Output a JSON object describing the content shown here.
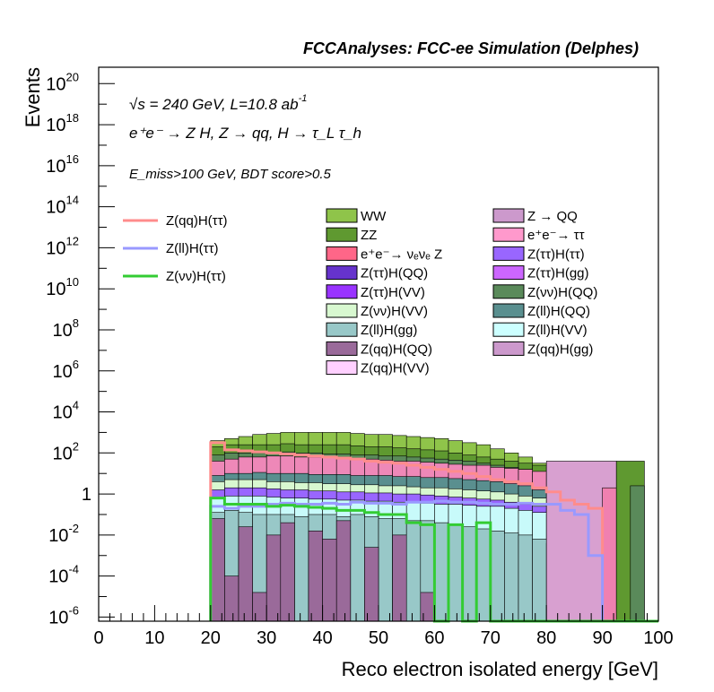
{
  "chart_data": {
    "type": "histogram",
    "title": "FCCAnalyses: FCC-ee Simulation (Delphes)",
    "annotations": {
      "energy": "√s = 240 GeV, L=10.8 ab",
      "energy_exp": "-1",
      "process": "e⁺e⁻ → Z H, Z → qq, H → τ_L τ_h",
      "selection": "E_miss>100 GeV, BDT score>0.5"
    },
    "xlabel": "Reco electron isolated energy [GeV]",
    "ylabel": "Events",
    "xlim": [
      0,
      100
    ],
    "ylim_log10": [
      -6.2,
      20.8
    ],
    "y_scale": "log",
    "x_ticks": [
      "0",
      "10",
      "20",
      "30",
      "40",
      "50",
      "60",
      "70",
      "80",
      "90",
      "100"
    ],
    "y_ticks": [
      {
        "base": "10",
        "exp": "20"
      },
      {
        "base": "10",
        "exp": "18"
      },
      {
        "base": "10",
        "exp": "16"
      },
      {
        "base": "10",
        "exp": "14"
      },
      {
        "base": "10",
        "exp": "12"
      },
      {
        "base": "10",
        "exp": "10"
      },
      {
        "base": "10",
        "exp": "8"
      },
      {
        "base": "10",
        "exp": "6"
      },
      {
        "base": "10",
        "exp": "4"
      },
      {
        "base": "10",
        "exp": "2"
      },
      {
        "base": "1",
        "exp": ""
      },
      {
        "base": "10",
        "exp": "-2"
      },
      {
        "base": "10",
        "exp": "-4"
      },
      {
        "base": "10",
        "exp": "-6"
      }
    ],
    "y_tick_log10": [
      20,
      18,
      16,
      14,
      12,
      10,
      8,
      6,
      4,
      2,
      0,
      -2,
      -4,
      -6
    ],
    "bin_edges_start": 20,
    "bin_width": 2.5,
    "stack_layers": [
      {
        "name": "WW",
        "color": "#8fc44a",
        "log10_values": [
          2.6,
          2.7,
          2.8,
          2.9,
          2.95,
          3.0,
          3.0,
          3.0,
          3.0,
          3.0,
          2.95,
          2.9,
          2.9,
          2.85,
          2.8,
          2.75,
          2.7,
          2.6,
          2.5,
          2.4,
          2.2,
          2.0,
          1.8,
          1.5,
          1.2,
          0.6,
          0.4,
          0.2,
          0.0,
          -0.2
        ]
      },
      {
        "name": "ZZ",
        "color": "#5f9930",
        "log10_values": [
          2.3,
          2.4,
          2.4,
          2.4,
          2.4,
          2.45,
          2.4,
          2.4,
          2.4,
          2.4,
          2.35,
          2.3,
          2.3,
          2.25,
          2.2,
          2.15,
          2.1,
          2.0,
          1.9,
          1.8,
          1.7,
          1.6,
          1.5,
          1.4,
          1.3,
          0.4,
          0.2,
          0.0,
          -0.2,
          -0.3
        ]
      },
      {
        "name": "Z(νν)H(QQ)",
        "color": "#5a8a5a",
        "log10_values": [
          1.9,
          2.0,
          2.0,
          2.0,
          2.0,
          2.05,
          2.0,
          2.0,
          1.95,
          1.95,
          1.9,
          1.9,
          1.85,
          1.85,
          1.8,
          1.75,
          1.7,
          1.65,
          1.6,
          1.5,
          1.4,
          1.3,
          1.2,
          1.0,
          0.8,
          0.3,
          0.1,
          -0.1,
          -0.3,
          -6.2
        ]
      },
      {
        "name": "e⁺e⁻→ ττ",
        "color": "#ee88b8",
        "log10_values": [
          1.6,
          1.7,
          1.8,
          1.8,
          1.85,
          1.85,
          1.8,
          1.8,
          1.8,
          1.75,
          1.7,
          1.7,
          1.65,
          1.6,
          1.6,
          1.55,
          1.5,
          1.45,
          1.4,
          1.4,
          1.3,
          1.25,
          1.2,
          1.1,
          1.0,
          0.2,
          0.1,
          0.0,
          -0.2,
          -6.2
        ]
      },
      {
        "name": "Z(ll)H(QQ)",
        "color": "#5a8f8f",
        "log10_values": [
          0.9,
          1.0,
          1.0,
          1.05,
          1.0,
          1.0,
          1.0,
          0.95,
          0.95,
          0.95,
          0.9,
          0.9,
          0.9,
          0.85,
          0.85,
          0.8,
          0.8,
          0.75,
          0.7,
          0.65,
          0.6,
          0.5,
          0.4,
          0.2,
          0.1,
          -0.2,
          -0.4,
          -0.6,
          -0.8,
          -6.2
        ]
      },
      {
        "name": "Z(νν)H(VV)",
        "color": "#d8f8d0",
        "log10_values": [
          0.6,
          0.7,
          0.7,
          0.7,
          0.6,
          0.6,
          0.55,
          0.55,
          0.5,
          0.5,
          0.45,
          0.45,
          0.4,
          0.4,
          0.35,
          0.3,
          0.3,
          0.25,
          0.2,
          0.15,
          0.1,
          0.0,
          -0.1,
          -0.2,
          -0.3,
          -0.8,
          -1.0,
          -1.2,
          -1.4,
          -6.2
        ]
      },
      {
        "name": "Z(ττ)H(ττ)",
        "color": "#9966ff",
        "log10_values": [
          0.2,
          0.3,
          0.3,
          0.3,
          0.25,
          0.2,
          0.2,
          0.15,
          0.15,
          0.1,
          0.1,
          0.05,
          0.05,
          0.0,
          0.0,
          -0.05,
          -0.1,
          -0.15,
          -0.2,
          -0.25,
          -0.3,
          -0.4,
          -0.5,
          -0.6,
          -0.7,
          -6.2,
          -6.2,
          -6.2,
          -6.2,
          -6.2
        ]
      },
      {
        "name": "Z(ll)H(VV)",
        "color": "#c8fafa",
        "log10_values": [
          -0.2,
          -0.1,
          -0.1,
          -0.1,
          -0.15,
          -0.2,
          -0.2,
          -0.25,
          -0.25,
          -0.3,
          -0.3,
          -0.35,
          -0.35,
          -0.4,
          -0.4,
          -0.45,
          -0.5,
          -0.5,
          -0.55,
          -0.6,
          -0.6,
          -0.7,
          -0.8,
          -0.9,
          -1.0,
          -6.2,
          -6.2,
          -6.2,
          -6.2,
          -6.2
        ]
      },
      {
        "name": "Z(ll)H(gg)",
        "color": "#98c8c8",
        "log10_values": [
          -0.9,
          -0.8,
          -0.9,
          -1.0,
          -1.0,
          -1.0,
          -1.1,
          -1.0,
          -1.0,
          -1.1,
          -1.0,
          -1.1,
          -1.2,
          -1.2,
          -1.3,
          -1.3,
          -1.4,
          -1.5,
          -1.6,
          -1.7,
          -1.8,
          -1.9,
          -2.0,
          -2.2,
          -2.4,
          -6.2,
          -6.2,
          -6.2,
          -6.2,
          -6.2
        ]
      },
      {
        "name": "Z(qq)H(QQ)",
        "color": "#9a6a9a",
        "log10_values": [
          -1.2,
          -4.0,
          -1.6,
          -4.8,
          -2.0,
          -1.4,
          -6.2,
          -1.8,
          -2.2,
          -1.3,
          -6.2,
          -2.6,
          -6.2,
          -2.0,
          -6.2,
          -4.8,
          -6.2,
          -6.2,
          -6.2,
          -6.2,
          -6.2,
          -6.2,
          -6.2,
          -6.2,
          -6.2,
          -6.2,
          -6.2,
          -6.2,
          -6.2,
          -6.2
        ]
      }
    ],
    "tail_layers": [
      {
        "name": "Z(qq)H(gg)",
        "color": "#d8a0d0",
        "x_start": 80,
        "x_end": 92.5,
        "log10_value": 1.6
      },
      {
        "name": "Z(qq)H(gg)",
        "color": "#d8a0d0",
        "x_start": 85,
        "x_end": 90,
        "log10_value": -6.2
      },
      {
        "name": "e⁺e⁻→ ττ",
        "color": "#f080b0",
        "x_start": 90,
        "x_end": 92.5,
        "log10_value": 0.3
      },
      {
        "name": "ZZ",
        "color": "#5f9930",
        "x_start": 92.5,
        "x_end": 97.5,
        "log10_value": 1.6
      },
      {
        "name": "Z(νν)H(QQ)",
        "color": "#5a8a5a",
        "x_start": 95,
        "x_end": 97.5,
        "log10_value": 0.4
      }
    ],
    "line_series": [
      {
        "name": "Z(qq)H(ττ)",
        "color": "#ff8c8c",
        "log10_values": [
          2.5,
          2.15,
          2.1,
          2.05,
          2.0,
          1.95,
          1.9,
          1.85,
          1.8,
          1.75,
          1.7,
          1.6,
          1.55,
          1.5,
          1.4,
          1.3,
          1.2,
          1.1,
          1.0,
          0.85,
          0.7,
          0.6,
          0.5,
          0.3,
          0.1,
          -0.3,
          -0.5,
          -0.7,
          -6.2,
          -6.2,
          -6.2,
          -6.2
        ]
      },
      {
        "name": "Z(ll)H(ττ)",
        "color": "#9999ff",
        "log10_values": [
          -0.6,
          -0.7,
          -0.6,
          -0.6,
          -0.5,
          -0.45,
          -0.5,
          -0.5,
          -0.45,
          -0.5,
          -0.4,
          -0.45,
          -0.45,
          -0.5,
          -0.4,
          -0.4,
          -0.35,
          -0.4,
          -0.4,
          -0.45,
          -0.5,
          -0.5,
          -0.45,
          -0.5,
          -0.5,
          -0.8,
          -1.0,
          -3.0,
          -6.2,
          -6.2,
          -6.2,
          -6.2
        ]
      },
      {
        "name": "Z(νν)H(ττ)",
        "color": "#33cc33",
        "log10_values": [
          -0.2,
          -0.5,
          -0.5,
          -0.5,
          -0.6,
          -0.55,
          -0.6,
          -0.65,
          -0.7,
          -0.8,
          -0.8,
          -0.9,
          -1.0,
          -1.0,
          -1.4,
          -1.5,
          -6.2,
          -1.5,
          -6.2,
          -1.4,
          -6.2,
          -6.2,
          -6.2,
          -6.2,
          -6.2,
          -6.2,
          -6.2,
          -6.2,
          -6.2,
          -6.2,
          -6.2,
          -6.2
        ]
      }
    ],
    "line_legend": [
      {
        "label": "Z(qq)H(ττ)",
        "color": "#ff8c8c"
      },
      {
        "label": "Z(ll)H(ττ)",
        "color": "#9999ff"
      },
      {
        "label": "Z(νν)H(ττ)",
        "color": "#33cc33"
      }
    ],
    "legend_col1": [
      {
        "label": "WW",
        "color": "#8fc44a"
      },
      {
        "label": "ZZ",
        "color": "#5f9930"
      },
      {
        "label": "e⁺e⁻→ νₑνₑ Z",
        "color": "#ff6688"
      },
      {
        "label": "Z(ττ)H(QQ)",
        "color": "#6633cc"
      },
      {
        "label": "Z(ττ)H(VV)",
        "color": "#9933ff"
      },
      {
        "label": "Z(νν)H(VV)",
        "color": "#d8f8d0"
      },
      {
        "label": "Z(ll)H(gg)",
        "color": "#98c8c8"
      },
      {
        "label": "Z(qq)H(QQ)",
        "color": "#9a6a9a"
      },
      {
        "label": "Z(qq)H(VV)",
        "color": "#ffd0ff"
      }
    ],
    "legend_col2": [
      {
        "label": "Z → QQ",
        "color": "#cc99cc"
      },
      {
        "label": "e⁺e⁻→ ττ",
        "color": "#ff99cc"
      },
      {
        "label": "Z(ττ)H(ττ)",
        "color": "#9966ff"
      },
      {
        "label": "Z(ττ)H(gg)",
        "color": "#cc66ff"
      },
      {
        "label": "Z(νν)H(QQ)",
        "color": "#5a8a5a"
      },
      {
        "label": "Z(ll)H(QQ)",
        "color": "#5a8f8f"
      },
      {
        "label": "Z(ll)H(VV)",
        "color": "#ccffff"
      },
      {
        "label": "Z(qq)H(gg)",
        "color": "#cc99cc"
      }
    ]
  }
}
